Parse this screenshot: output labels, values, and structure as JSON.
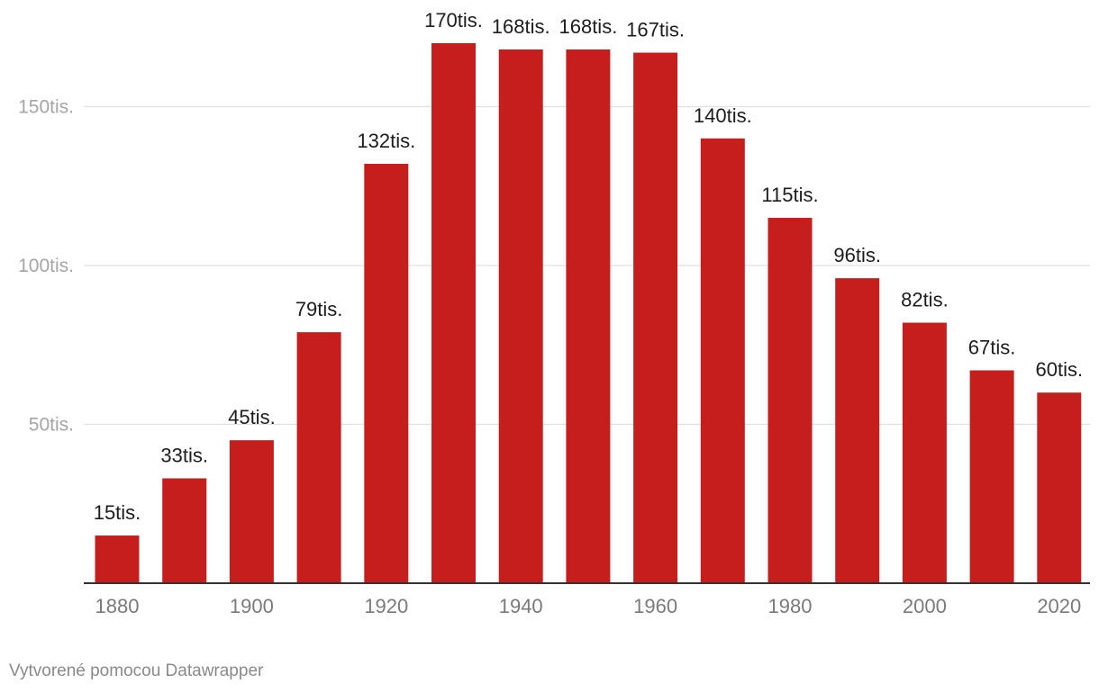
{
  "chart_data": {
    "type": "bar",
    "categories": [
      "1880",
      "1890",
      "1900",
      "1910",
      "1920",
      "1930",
      "1940",
      "1950",
      "1960",
      "1970",
      "1980",
      "1990",
      "2000",
      "2010",
      "2020"
    ],
    "values": [
      15,
      33,
      45,
      79,
      132,
      170,
      168,
      168,
      167,
      140,
      115,
      96,
      82,
      67,
      60
    ],
    "data_labels": [
      "15tis.",
      "33tis.",
      "45tis.",
      "79tis.",
      "132tis.",
      "170tis.",
      "168tis.",
      "168tis.",
      "167tis.",
      "140tis.",
      "115tis.",
      "96tis.",
      "82tis.",
      "67tis.",
      "60tis."
    ],
    "x_tick_labels": [
      "1880",
      "",
      "1900",
      "",
      "1920",
      "",
      "1940",
      "",
      "1960",
      "",
      "1980",
      "",
      "2000",
      "",
      "2020"
    ],
    "y_ticks": [
      50,
      100,
      150
    ],
    "y_tick_labels": [
      "50tis.",
      "100tis.",
      "150tis."
    ],
    "ylim": [
      0,
      180
    ],
    "title": "",
    "xlabel": "",
    "ylabel": "",
    "bar_color": "#c61d1d",
    "grid": true
  },
  "footer": {
    "credit": "Vytvorené pomocou Datawrapper"
  }
}
